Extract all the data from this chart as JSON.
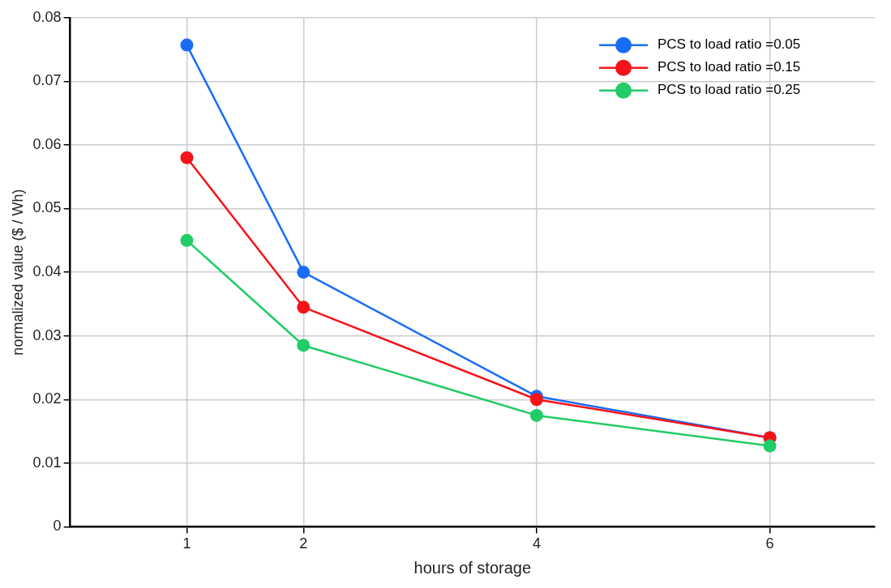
{
  "chart_data": {
    "type": "line",
    "xlabel": "hours of storage",
    "ylabel": "normalized value ($ / Wh)",
    "x": [
      1,
      2,
      4,
      6
    ],
    "series": [
      {
        "name": "PCS to load ratio =0.05",
        "color": "#1a6cf5",
        "values": [
          0.0757,
          0.04,
          0.0205,
          0.014
        ]
      },
      {
        "name": "PCS to load ratio =0.15",
        "color": "#f5131a",
        "values": [
          0.058,
          0.0345,
          0.02,
          0.014
        ]
      },
      {
        "name": "PCS to load ratio =0.25",
        "color": "#22cc66",
        "values": [
          0.045,
          0.0285,
          0.0175,
          0.0127
        ]
      }
    ],
    "xlim": [
      0,
      6.9
    ],
    "xticks": [
      1,
      2,
      4,
      6
    ],
    "ylim": [
      0,
      0.08
    ],
    "yticks": [
      0,
      0.01,
      0.02,
      0.03,
      0.04,
      0.05,
      0.06,
      0.07,
      0.08
    ],
    "grid": true,
    "legend": "top right",
    "marker": "circle",
    "line_style": "solid"
  }
}
